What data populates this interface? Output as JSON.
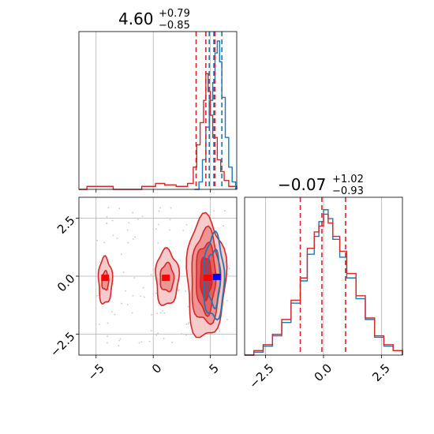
{
  "chart_data": {
    "type": "corner",
    "colors": {
      "series_a": "#1f77b4",
      "series_b": "#d62728"
    },
    "panels": [
      {
        "name": "param-1-marginal",
        "type": "histogram",
        "title": {
          "value": "4.60",
          "plus": "+0.79",
          "minus": "−0.85"
        },
        "xlim": [
          -6.5,
          7.3
        ],
        "quantile_lines": {
          "series_a": [
            4.9,
            5.3,
            6.0
          ],
          "series_b": [
            3.75,
            4.6,
            5.39
          ]
        },
        "series_b_bins": [
          [
            -6.5,
            0.0
          ],
          [
            -5.8,
            0.02
          ],
          [
            -4.5,
            0.02
          ],
          [
            -3.5,
            0.0
          ],
          [
            -1.0,
            0.02
          ],
          [
            0.2,
            0.04
          ],
          [
            1.0,
            0.03
          ],
          [
            2.0,
            0.02
          ],
          [
            3.0,
            0.04
          ],
          [
            3.5,
            0.15
          ],
          [
            3.8,
            0.3
          ],
          [
            4.1,
            0.45
          ],
          [
            4.4,
            0.6
          ],
          [
            4.6,
            0.78
          ],
          [
            4.8,
            0.66
          ],
          [
            5.0,
            0.5
          ],
          [
            5.2,
            0.35
          ],
          [
            5.6,
            0.2
          ],
          [
            5.9,
            0.12
          ],
          [
            6.2,
            0.06
          ],
          [
            6.6,
            0.02
          ],
          [
            7.3,
            0.0
          ]
        ],
        "series_a_bins": [
          [
            3.6,
            0.0
          ],
          [
            4.0,
            0.05
          ],
          [
            4.3,
            0.2
          ],
          [
            4.6,
            0.42
          ],
          [
            4.9,
            0.6
          ],
          [
            5.2,
            0.72
          ],
          [
            5.4,
            0.92
          ],
          [
            5.6,
            1.0
          ],
          [
            5.8,
            0.86
          ],
          [
            6.0,
            0.62
          ],
          [
            6.3,
            0.35
          ],
          [
            6.6,
            0.15
          ],
          [
            6.9,
            0.05
          ],
          [
            7.2,
            0.0
          ]
        ]
      },
      {
        "name": "param-2-marginal",
        "type": "histogram",
        "title": {
          "value": "−0.07",
          "plus": "+1.02",
          "minus": "−0.93"
        },
        "xlim": [
          -3.4,
          3.4
        ],
        "xticks": [
          "−2.5",
          "0.0",
          "2.5"
        ],
        "quantile_lines": {
          "series_b": [
            -1.0,
            -0.07,
            0.95
          ]
        },
        "series_b_bins": [
          [
            -3.4,
            0.0
          ],
          [
            -3.0,
            0.03
          ],
          [
            -2.6,
            0.07
          ],
          [
            -2.2,
            0.14
          ],
          [
            -1.8,
            0.24
          ],
          [
            -1.4,
            0.37
          ],
          [
            -1.0,
            0.52
          ],
          [
            -0.7,
            0.72
          ],
          [
            -0.4,
            0.83
          ],
          [
            -0.2,
            0.87
          ],
          [
            0.0,
            0.95
          ],
          [
            0.2,
            0.89
          ],
          [
            0.4,
            0.8
          ],
          [
            0.7,
            0.7
          ],
          [
            1.0,
            0.55
          ],
          [
            1.4,
            0.4
          ],
          [
            1.8,
            0.25
          ],
          [
            2.2,
            0.13
          ],
          [
            2.6,
            0.07
          ],
          [
            3.0,
            0.03
          ],
          [
            3.4,
            0.0
          ]
        ],
        "series_a_bins": [
          [
            -3.4,
            0.0
          ],
          [
            -3.0,
            0.02
          ],
          [
            -2.6,
            0.06
          ],
          [
            -2.2,
            0.13
          ],
          [
            -1.8,
            0.22
          ],
          [
            -1.4,
            0.35
          ],
          [
            -1.0,
            0.5
          ],
          [
            -0.7,
            0.68
          ],
          [
            -0.4,
            0.8
          ],
          [
            -0.2,
            0.9
          ],
          [
            0.0,
            0.98
          ],
          [
            0.2,
            0.92
          ],
          [
            0.4,
            0.78
          ],
          [
            0.7,
            0.66
          ],
          [
            1.0,
            0.52
          ],
          [
            1.4,
            0.38
          ],
          [
            1.8,
            0.24
          ],
          [
            2.2,
            0.12
          ],
          [
            2.6,
            0.06
          ],
          [
            3.0,
            0.03
          ],
          [
            3.4,
            0.0
          ]
        ]
      },
      {
        "name": "joint-2d",
        "type": "contour",
        "xlim": [
          -6.5,
          7.3
        ],
        "ylim": [
          -3.4,
          3.4
        ],
        "xticks": [
          "−5",
          "0",
          "5"
        ],
        "yticks": [
          "2.5",
          "0.0",
          "−2.5"
        ],
        "xtick_values": [
          -5,
          0,
          5
        ],
        "ytick_values": [
          2.5,
          0.0,
          -2.5
        ],
        "series_b_modes": [
          {
            "cx": 4.6,
            "cy": -0.07,
            "rx": [
              1.7,
              1.25,
              0.85,
              0.5
            ],
            "ry": [
              2.6,
              2.0,
              1.5,
              0.9
            ]
          },
          {
            "cx": 1.2,
            "cy": -0.07,
            "rx": [
              1.0,
              0.6
            ],
            "ry": [
              1.2,
              0.6
            ]
          },
          {
            "cx": -4.2,
            "cy": -0.2,
            "rx": [
              0.6,
              0.3
            ],
            "ry": [
              1.0,
              0.4
            ]
          }
        ],
        "series_a_modes": [
          {
            "cx": 5.3,
            "cy": -0.07,
            "rx": [
              1.3,
              0.9,
              0.55
            ],
            "ry": [
              2.4,
              1.8,
              1.2
            ]
          }
        ],
        "markers": {
          "series_b": [
            [
              4.75,
              -0.07
            ],
            [
              1.1,
              -0.07
            ],
            [
              -4.2,
              -0.07
            ]
          ],
          "series_a": [
            [
              5.55,
              -0.03
            ]
          ]
        }
      }
    ]
  }
}
